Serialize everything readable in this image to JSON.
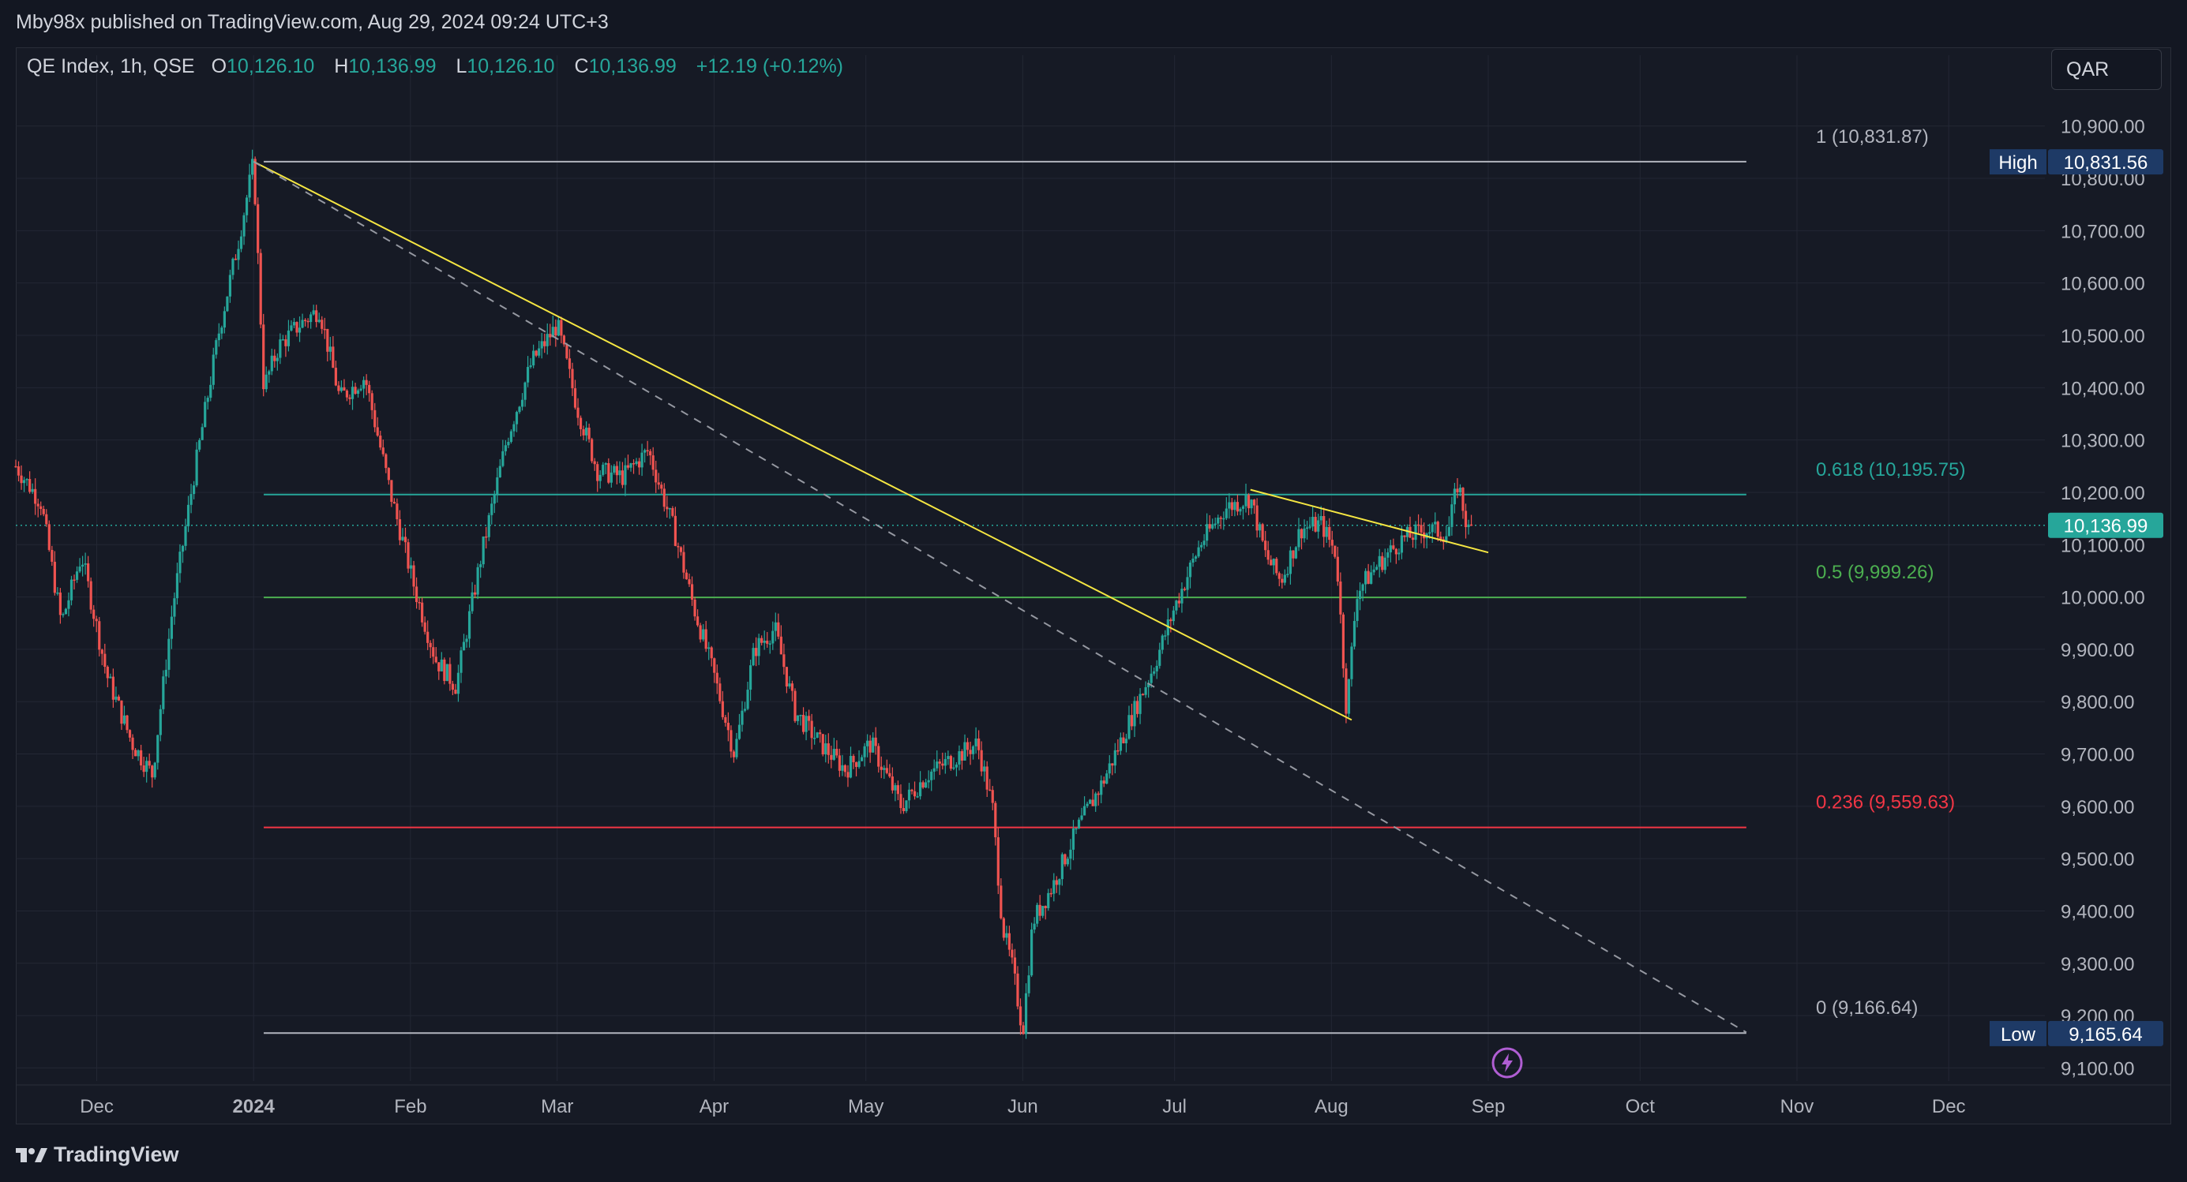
{
  "header": {
    "published": "Mby98x published on TradingView.com, Aug 29, 2024 09:24 UTC+3"
  },
  "legend": {
    "symbol": "QE Index, 1h, QSE",
    "open_label": "O",
    "open": "10,126.10",
    "high_label": "H",
    "high": "10,136.99",
    "low_label": "L",
    "low": "10,126.10",
    "close_label": "C",
    "close": "10,136.99",
    "change": "+12.19 (+0.12%)"
  },
  "currency_button": "QAR",
  "footer": {
    "brand": "TradingView"
  },
  "colors": {
    "up": "#26a69a",
    "down": "#ef5350",
    "trendline": "#f5e642",
    "fib_1": "#b2b5be",
    "fib_0618": "#26a69a",
    "fib_05": "#4caf50",
    "fib_0236": "#f23645",
    "fib_0": "#b2b5be",
    "high_badge": "#1e3a66",
    "price_badge": "#26a69a"
  },
  "chart_data": {
    "type": "candlestick",
    "interval": "1h",
    "currency": "QAR",
    "ylim": [
      9075,
      10975
    ],
    "y_ticks": [
      {
        "value": 10900,
        "label": "10,900.00"
      },
      {
        "value": 10800,
        "label": "10,800.00"
      },
      {
        "value": 10700,
        "label": "10,700.00"
      },
      {
        "value": 10600,
        "label": "10,600.00"
      },
      {
        "value": 10500,
        "label": "10,500.00"
      },
      {
        "value": 10400,
        "label": "10,400.00"
      },
      {
        "value": 10300,
        "label": "10,300.00"
      },
      {
        "value": 10200,
        "label": "10,200.00"
      },
      {
        "value": 10100,
        "label": "10,100.00"
      },
      {
        "value": 10000,
        "label": "10,000.00"
      },
      {
        "value": 9900,
        "label": "9,900.00"
      },
      {
        "value": 9800,
        "label": "9,800.00"
      },
      {
        "value": 9700,
        "label": "9,700.00"
      },
      {
        "value": 9600,
        "label": "9,600.00"
      },
      {
        "value": 9500,
        "label": "9,500.00"
      },
      {
        "value": 9400,
        "label": "9,400.00"
      },
      {
        "value": 9300,
        "label": "9,300.00"
      },
      {
        "value": 9200,
        "label": "9,200.00"
      },
      {
        "value": 9100,
        "label": "9,100.00"
      }
    ],
    "x_range": [
      "2023-11-15",
      "2024-12-20"
    ],
    "x_ticks": [
      {
        "date": "2023-12-01",
        "label": "Dec"
      },
      {
        "date": "2024-01-01",
        "label": "2024",
        "bold": true
      },
      {
        "date": "2024-02-01",
        "label": "Feb"
      },
      {
        "date": "2024-03-01",
        "label": "Mar"
      },
      {
        "date": "2024-04-01",
        "label": "Apr"
      },
      {
        "date": "2024-05-01",
        "label": "May"
      },
      {
        "date": "2024-06-01",
        "label": "Jun"
      },
      {
        "date": "2024-07-01",
        "label": "Jul"
      },
      {
        "date": "2024-08-01",
        "label": "Aug"
      },
      {
        "date": "2024-09-01",
        "label": "Sep"
      },
      {
        "date": "2024-10-01",
        "label": "Oct"
      },
      {
        "date": "2024-11-01",
        "label": "Nov"
      },
      {
        "date": "2024-12-01",
        "label": "Dec"
      }
    ],
    "price_path": [
      [
        "2023-11-15",
        10250
      ],
      [
        "2023-11-20",
        10180
      ],
      [
        "2023-11-24",
        9950
      ],
      [
        "2023-11-28",
        10080
      ],
      [
        "2023-12-03",
        9850
      ],
      [
        "2023-12-08",
        9720
      ],
      [
        "2023-12-12",
        9660
      ],
      [
        "2023-12-16",
        9980
      ],
      [
        "2023-12-20",
        10220
      ],
      [
        "2023-12-25",
        10500
      ],
      [
        "2023-12-29",
        10680
      ],
      [
        "2024-01-01",
        10832
      ],
      [
        "2024-01-03",
        10400
      ],
      [
        "2024-01-06",
        10480
      ],
      [
        "2024-01-10",
        10520
      ],
      [
        "2024-01-14",
        10550
      ],
      [
        "2024-01-18",
        10380
      ],
      [
        "2024-01-23",
        10420
      ],
      [
        "2024-01-28",
        10200
      ],
      [
        "2024-02-02",
        10010
      ],
      [
        "2024-02-06",
        9880
      ],
      [
        "2024-02-10",
        9830
      ],
      [
        "2024-02-15",
        10080
      ],
      [
        "2024-02-20",
        10300
      ],
      [
        "2024-02-25",
        10450
      ],
      [
        "2024-03-01",
        10520
      ],
      [
        "2024-03-05",
        10360
      ],
      [
        "2024-03-09",
        10240
      ],
      [
        "2024-03-14",
        10230
      ],
      [
        "2024-03-19",
        10280
      ],
      [
        "2024-03-24",
        10130
      ],
      [
        "2024-03-28",
        9980
      ],
      [
        "2024-04-01",
        9850
      ],
      [
        "2024-04-05",
        9700
      ],
      [
        "2024-04-09",
        9900
      ],
      [
        "2024-04-13",
        9940
      ],
      [
        "2024-04-17",
        9780
      ],
      [
        "2024-04-22",
        9720
      ],
      [
        "2024-04-27",
        9670
      ],
      [
        "2024-05-02",
        9720
      ],
      [
        "2024-05-08",
        9600
      ],
      [
        "2024-05-13",
        9660
      ],
      [
        "2024-05-18",
        9690
      ],
      [
        "2024-05-23",
        9720
      ],
      [
        "2024-05-26",
        9600
      ],
      [
        "2024-05-28",
        9370
      ],
      [
        "2024-05-30",
        9290
      ],
      [
        "2024-06-01",
        9170
      ],
      [
        "2024-06-03",
        9380
      ],
      [
        "2024-06-07",
        9450
      ],
      [
        "2024-06-12",
        9560
      ],
      [
        "2024-06-17",
        9650
      ],
      [
        "2024-06-22",
        9760
      ],
      [
        "2024-06-27",
        9870
      ],
      [
        "2024-07-01",
        9980
      ],
      [
        "2024-07-06",
        10100
      ],
      [
        "2024-07-11",
        10170
      ],
      [
        "2024-07-16",
        10190
      ],
      [
        "2024-07-19",
        10080
      ],
      [
        "2024-07-22",
        10030
      ],
      [
        "2024-07-26",
        10130
      ],
      [
        "2024-07-30",
        10140
      ],
      [
        "2024-08-02",
        10080
      ],
      [
        "2024-08-04",
        9780
      ],
      [
        "2024-08-06",
        10010
      ],
      [
        "2024-08-10",
        10060
      ],
      [
        "2024-08-15",
        10110
      ],
      [
        "2024-08-20",
        10130
      ],
      [
        "2024-08-24",
        10120
      ],
      [
        "2024-08-26",
        10220
      ],
      [
        "2024-08-28",
        10124
      ],
      [
        "2024-08-29",
        10137
      ]
    ],
    "fibonacci": [
      {
        "label": "1 (10,831.87)",
        "value": 10831.87,
        "color": "#b2b5be"
      },
      {
        "label": "0.618 (10,195.75)",
        "value": 10195.75,
        "color": "#26a69a"
      },
      {
        "label": "0.5 (9,999.26)",
        "value": 9999.26,
        "color": "#4caf50"
      },
      {
        "label": "0.236 (9,559.63)",
        "value": 9559.63,
        "color": "#f23645"
      },
      {
        "label": "0 (9,166.64)",
        "value": 9166.64,
        "color": "#b2b5be"
      }
    ],
    "fib_range": [
      "2024-01-03",
      "2024-10-22"
    ],
    "trendlines": [
      {
        "from": [
          "2024-01-01",
          10832
        ],
        "to": [
          "2024-08-05",
          9765
        ],
        "style": "solid"
      },
      {
        "from": [
          "2024-07-16",
          10205
        ],
        "to": [
          "2024-09-01",
          10085
        ],
        "style": "solid"
      },
      {
        "from": [
          "2024-01-01",
          10832
        ],
        "to": [
          "2024-10-22",
          9168
        ],
        "style": "dashed"
      }
    ],
    "markers": [
      {
        "label": "High",
        "value": "10,831.56",
        "y": 10831.56
      },
      {
        "label": "Low",
        "value": "9,165.64",
        "y": 9165.64
      },
      {
        "label": "",
        "value": "10,136.99",
        "y": 10136.99
      }
    ]
  }
}
